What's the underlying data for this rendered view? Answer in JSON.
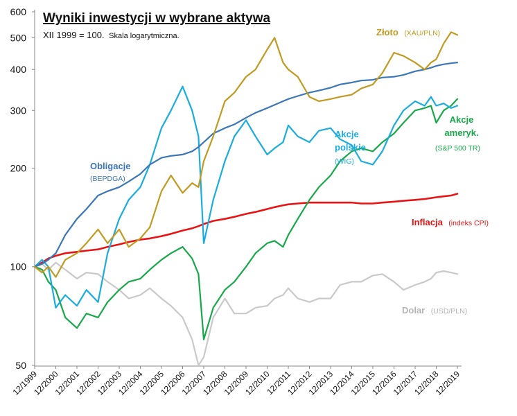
{
  "chart_data": {
    "type": "line",
    "title": "Wyniki inwestycji w wybrane aktywa",
    "subtitle_main": "XII 1999 = 100.",
    "subtitle_note": "Skala logarytmiczna.",
    "y_scale": "log",
    "ylim": [
      50,
      600
    ],
    "y_ticks": [
      {
        "value": 50,
        "label": "50"
      },
      {
        "value": 100,
        "label": "100"
      },
      {
        "value": 200,
        "label": "200"
      },
      {
        "value": 300,
        "label": "300"
      },
      {
        "value": 400,
        "label": "400"
      },
      {
        "value": 500,
        "label": "500"
      },
      {
        "value": 600,
        "label": "600"
      }
    ],
    "x": [
      1999.95,
      2000.3,
      2000.6,
      2000.95,
      2001.4,
      2001.95,
      2002.4,
      2002.95,
      2003.4,
      2003.95,
      2004.4,
      2004.95,
      2005.4,
      2005.95,
      2006.4,
      2006.95,
      2007.4,
      2007.7,
      2007.95,
      2008.4,
      2008.95,
      2009.4,
      2009.95,
      2010.4,
      2010.95,
      2011.3,
      2011.7,
      2011.95,
      2012.4,
      2012.95,
      2013.4,
      2013.95,
      2014.4,
      2014.95,
      2015.4,
      2015.95,
      2016.4,
      2016.95,
      2017.4,
      2017.95,
      2018.4,
      2018.7,
      2018.95,
      2019.3,
      2019.65,
      2019.95
    ],
    "x_ticks": [
      "12/1999",
      "12/2000",
      "12/2001",
      "12/2002",
      "12/2003",
      "12/2004",
      "12/2005",
      "12/2006",
      "12/2007",
      "12/2008",
      "12/2009",
      "12/2010",
      "12/2011",
      "12/2012",
      "12/2013",
      "12/2014",
      "12/2015",
      "12/2016",
      "12/2017",
      "12/2018",
      "12/2019"
    ],
    "x_tick_values": [
      1999.95,
      2000.95,
      2001.95,
      2002.95,
      2003.95,
      2004.95,
      2005.95,
      2006.95,
      2007.95,
      2008.95,
      2009.95,
      2010.95,
      2011.95,
      2012.95,
      2013.95,
      2014.95,
      2015.95,
      2016.95,
      2017.95,
      2018.95,
      2019.95
    ],
    "series": [
      {
        "name": "Dolar",
        "label_bold": "Dolar",
        "label_small": "(USD/PLN)",
        "color": "#c9c9c9",
        "values": [
          100,
          102,
          98,
          103,
          98,
          92,
          96,
          95,
          90,
          85,
          80,
          82,
          86,
          80,
          76,
          70,
          60,
          50,
          53,
          70,
          80,
          72,
          72,
          75,
          76,
          80,
          82,
          86,
          80,
          78,
          80,
          80,
          88,
          90,
          90,
          94,
          95,
          90,
          85,
          88,
          90,
          92,
          96,
          97,
          96,
          95
        ]
      },
      {
        "name": "Inflacja",
        "label_bold": "Inflacja",
        "label_small": "(indeks CPI)",
        "color": "#e81414",
        "values": [
          100,
          103,
          106,
          108,
          110,
          111,
          112,
          113,
          115,
          117,
          119,
          121,
          122,
          124,
          126,
          129,
          131,
          133,
          135,
          138,
          140,
          142,
          145,
          147,
          150,
          152,
          154,
          155,
          156,
          157,
          157,
          157,
          157,
          157,
          156,
          156,
          157,
          158,
          159,
          160,
          161,
          162,
          163,
          164,
          165,
          167
        ]
      },
      {
        "name": "Akcje amerykańskie",
        "label_bold": "Akcje ameryk.",
        "label_small": "(S&P 500 TR)",
        "color": "#18a84a",
        "values": [
          100,
          98,
          90,
          85,
          70,
          65,
          72,
          70,
          78,
          85,
          90,
          92,
          98,
          105,
          110,
          115,
          106,
          95,
          60,
          75,
          85,
          90,
          100,
          110,
          118,
          120,
          115,
          125,
          140,
          160,
          175,
          190,
          210,
          225,
          230,
          225,
          240,
          255,
          275,
          300,
          305,
          310,
          275,
          300,
          310,
          325
        ]
      },
      {
        "name": "Akcje polskie",
        "label_bold": "Akcje",
        "label_bold2": "polskie",
        "label_small": "(WIG)",
        "color": "#1aacdf",
        "values": [
          100,
          105,
          100,
          75,
          82,
          76,
          85,
          78,
          110,
          140,
          160,
          175,
          205,
          265,
          300,
          355,
          300,
          250,
          118,
          160,
          210,
          250,
          280,
          250,
          220,
          230,
          240,
          270,
          250,
          240,
          260,
          265,
          245,
          235,
          210,
          205,
          225,
          270,
          300,
          320,
          310,
          330,
          310,
          315,
          305,
          310
        ]
      },
      {
        "name": "Obligacje",
        "label_bold": "Obligacje",
        "label_small": "(BEPDGA)",
        "color": "#3b76b8",
        "values": [
          100,
          102,
          105,
          110,
          125,
          140,
          150,
          165,
          170,
          175,
          182,
          192,
          205,
          215,
          218,
          220,
          225,
          232,
          240,
          255,
          265,
          272,
          285,
          295,
          305,
          312,
          320,
          325,
          332,
          340,
          345,
          352,
          360,
          365,
          370,
          372,
          378,
          380,
          385,
          395,
          400,
          405,
          410,
          415,
          418,
          420
        ]
      },
      {
        "name": "Złoto",
        "label_bold": "Złoto",
        "label_small": "(XAU/PLN)",
        "color": "#c19a21",
        "values": [
          100,
          96,
          100,
          93,
          105,
          110,
          118,
          130,
          118,
          130,
          115,
          122,
          132,
          170,
          190,
          168,
          180,
          175,
          210,
          250,
          320,
          340,
          380,
          400,
          460,
          500,
          420,
          400,
          380,
          330,
          320,
          325,
          330,
          335,
          350,
          360,
          390,
          450,
          440,
          420,
          400,
          420,
          430,
          480,
          520,
          510
        ]
      }
    ]
  }
}
